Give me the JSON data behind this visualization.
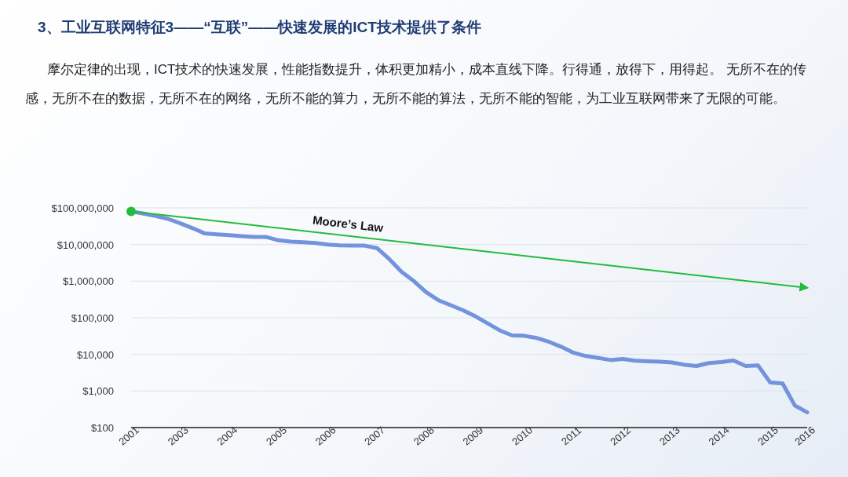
{
  "chart_data": {
    "type": "line",
    "title": "3、工业互联网特征3——“互联”——快速发展的ICT技术提供了条件",
    "subtitle": "摩尔定律的出现，ICT技术的快速发展，性能指数提升，体积更加精小，成本直线下降。行得通，放得下，用得起。 无所不在的传感，无所不在的数据，无所不在的网络，无所不能的算力，无所不能的算法，无所不能的智能，为工业互联网带来了无限的可能。",
    "categories": [
      "2001",
      null,
      null,
      null,
      "2003",
      null,
      null,
      null,
      "2004",
      null,
      null,
      null,
      "2005",
      null,
      null,
      null,
      "2006",
      null,
      null,
      null,
      "2007",
      null,
      null,
      null,
      "2008",
      null,
      null,
      null,
      "2009",
      null,
      null,
      null,
      "2010",
      null,
      null,
      null,
      "2011",
      null,
      null,
      null,
      "2012",
      null,
      null,
      null,
      "2013",
      null,
      null,
      null,
      "2014",
      null,
      null,
      null,
      "2015",
      null,
      null,
      "2016"
    ],
    "series": [
      {
        "color": "#7393dd",
        "values": [
          80000000,
          70000000,
          60000000,
          50000000,
          38000000,
          28000000,
          20000000,
          19000000,
          18000000,
          17000000,
          16000000,
          16000000,
          13000000,
          12000000,
          11500000,
          11000000,
          10000000,
          9500000,
          9300000,
          9300000,
          8000000,
          4000000,
          1800000,
          1000000,
          500000,
          300000,
          220000,
          160000,
          110000,
          70000,
          45000,
          33000,
          32000,
          28000,
          22000,
          16000,
          11000,
          9000,
          8000,
          7000,
          7500,
          6700,
          6500,
          6300,
          6000,
          5200,
          4800,
          5800,
          6200,
          6800,
          4800,
          5000,
          1700,
          1600,
          400,
          260
        ]
      },
      {
        "name": "Moore’s Law",
        "color": "#22bb3c",
        "values": [
          80000000,
          null,
          null,
          null,
          null,
          null,
          null,
          null,
          null,
          null,
          null,
          null,
          null,
          null,
          null,
          null,
          null,
          null,
          null,
          null,
          null,
          null,
          null,
          null,
          null,
          null,
          null,
          null,
          null,
          null,
          null,
          null,
          null,
          null,
          null,
          null,
          null,
          null,
          null,
          null,
          null,
          null,
          null,
          null,
          null,
          null,
          null,
          null,
          null,
          null,
          null,
          null,
          null,
          null,
          null,
          660000
        ]
      }
    ],
    "log": true,
    "ylim": [
      100,
      100000000
    ],
    "yticks": [
      {
        "value": 100,
        "label": "$100"
      },
      {
        "value": 1000,
        "label": "$1,000"
      },
      {
        "value": 10000,
        "label": "$10,000"
      },
      {
        "value": 100000,
        "label": "$100,000"
      },
      {
        "value": 1000000,
        "label": "$1,000,000"
      },
      {
        "value": 10000000,
        "label": "$10,000,000"
      },
      {
        "value": 100000000,
        "label": "$100,000,000"
      }
    ],
    "grid": "y"
  }
}
